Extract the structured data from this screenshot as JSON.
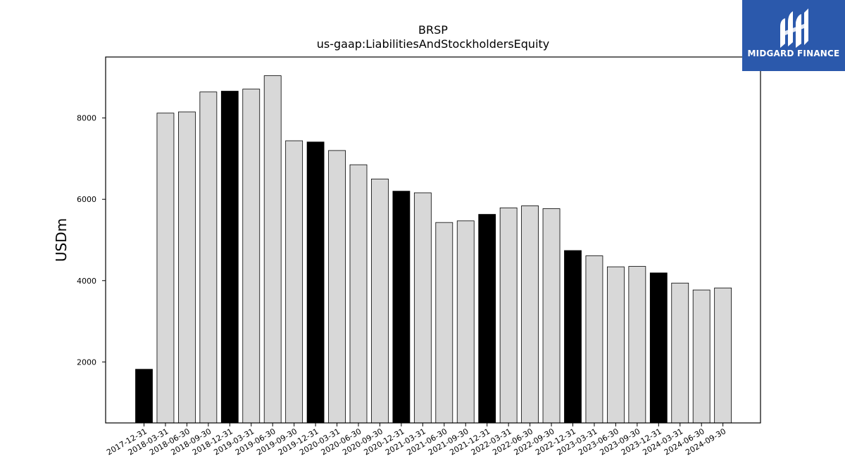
{
  "logo": {
    "text": "MIDGARD FINANCE",
    "bg_color": "#2b59ac"
  },
  "chart_data": {
    "type": "bar",
    "title": "BRSP",
    "subtitle": "us-gaap:LiabilitiesAndStockholdersEquity",
    "xlabel": "",
    "ylabel": "USDm",
    "ylim": [
      500,
      9500
    ],
    "yticks": [
      2000,
      4000,
      6000,
      8000
    ],
    "grid": false,
    "legend": "none",
    "colors": {
      "highlight": "#000000",
      "regular": "#d8d8d8",
      "edge": "#000000"
    },
    "categories": [
      "2017-12-31",
      "2018-03-31",
      "2018-06-30",
      "2018-09-30",
      "2018-12-31",
      "2019-03-31",
      "2019-06-30",
      "2019-09-30",
      "2019-12-31",
      "2020-03-31",
      "2020-06-30",
      "2020-09-30",
      "2020-12-31",
      "2021-03-31",
      "2021-06-30",
      "2021-09-30",
      "2021-12-31",
      "2022-03-31",
      "2022-06-30",
      "2022-09-30",
      "2022-12-31",
      "2023-03-31",
      "2023-06-30",
      "2023-09-30",
      "2023-12-31",
      "2024-03-31",
      "2024-06-30",
      "2024-09-30"
    ],
    "values": [
      1820,
      8120,
      8150,
      8640,
      8660,
      8710,
      9040,
      7440,
      7410,
      7200,
      6850,
      6500,
      6200,
      6160,
      5430,
      5470,
      5630,
      5790,
      5840,
      5770,
      4740,
      4610,
      4340,
      4350,
      4190,
      3940,
      3770,
      3820
    ],
    "highlighted": [
      true,
      false,
      false,
      false,
      true,
      false,
      false,
      false,
      true,
      false,
      false,
      false,
      true,
      false,
      false,
      false,
      true,
      false,
      false,
      false,
      true,
      false,
      false,
      false,
      true,
      false,
      false,
      false
    ]
  }
}
